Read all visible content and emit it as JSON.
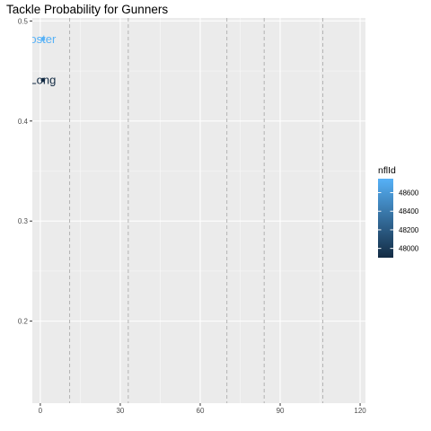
{
  "chart_data": {
    "type": "scatter",
    "title": "Tackle Probability for Gunners",
    "xlabel": "",
    "ylabel": "",
    "xlim": [
      -3,
      122
    ],
    "ylim": [
      0.118,
      0.503
    ],
    "x_ticks": [
      0,
      30,
      60,
      90,
      120
    ],
    "x_tick_labels": [
      "0",
      "30",
      "60",
      "90",
      "120"
    ],
    "y_ticks": [
      0.2,
      0.3,
      0.4,
      0.5
    ],
    "y_tick_labels": [
      "0.2",
      "0.3",
      "0.4",
      "0.5"
    ],
    "vlines": [
      11,
      33,
      70,
      84,
      106
    ],
    "grid": true,
    "points": [
      {
        "x": 1,
        "y": 0.482,
        "nflId": 48700,
        "label": "oster",
        "color": "#56B1F7"
      },
      {
        "x": 1,
        "y": 0.441,
        "nflId": 47900,
        "label": "Long",
        "color": "#132B43"
      }
    ],
    "legend": {
      "title": "nflId",
      "position": "right",
      "min": 47900,
      "max": 48750,
      "breaks": [
        48000,
        48200,
        48400,
        48600
      ],
      "break_labels": [
        "48000",
        "48200",
        "48400",
        "48600"
      ],
      "low_color": "#132B43",
      "high_color": "#56B1F7"
    }
  }
}
